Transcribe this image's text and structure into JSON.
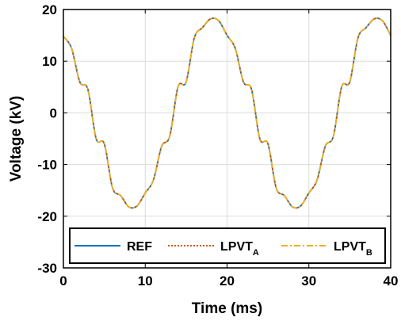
{
  "chart_data": {
    "type": "line",
    "xlabel": "Time (ms)",
    "ylabel": "Voltage (kV)",
    "xlim": [
      0,
      40
    ],
    "ylim": [
      -30,
      20
    ],
    "xticks": [
      0,
      10,
      20,
      30,
      40
    ],
    "yticks": [
      20,
      10,
      0,
      -10,
      -20,
      -30
    ],
    "grid": true,
    "legend_position": "bottom",
    "x": [
      0,
      1,
      2,
      3,
      4,
      5,
      6,
      7,
      8,
      9,
      10,
      11,
      12,
      13,
      14,
      15,
      16,
      17,
      18,
      19,
      20,
      21,
      22,
      23,
      24,
      25,
      26,
      27,
      28,
      29,
      30,
      31,
      32,
      33,
      34,
      35,
      36,
      37,
      38,
      39,
      40
    ],
    "series": [
      {
        "name": "REF",
        "sub": "",
        "color": "#0072BD",
        "dash": "",
        "values": [
          14.8,
          12.5,
          6.0,
          4.5,
          -5.0,
          -6.0,
          -14.5,
          -16.0,
          -18.2,
          -18.0,
          -15.5,
          -13.0,
          -6.5,
          -4.5,
          5.0,
          6.0,
          14.5,
          16.5,
          18.2,
          17.8,
          15.0,
          12.5,
          6.0,
          4.5,
          -5.0,
          -6.0,
          -14.5,
          -16.0,
          -18.2,
          -18.0,
          -15.5,
          -13.0,
          -6.5,
          -4.5,
          5.0,
          6.0,
          14.5,
          16.5,
          18.2,
          17.8,
          15.0
        ]
      },
      {
        "name": "LPVT",
        "sub": "A",
        "color": "#D95319",
        "dash": "2 2",
        "values": [
          14.8,
          12.5,
          6.0,
          4.5,
          -5.0,
          -6.0,
          -14.5,
          -16.0,
          -18.2,
          -18.0,
          -15.5,
          -13.0,
          -6.5,
          -4.5,
          5.0,
          6.0,
          14.5,
          16.5,
          18.2,
          17.8,
          15.0,
          12.5,
          6.0,
          4.5,
          -5.0,
          -6.0,
          -14.5,
          -16.0,
          -18.2,
          -18.0,
          -15.5,
          -13.0,
          -6.5,
          -4.5,
          5.0,
          6.0,
          14.5,
          16.5,
          18.2,
          17.8,
          15.0
        ]
      },
      {
        "name": "LPVT",
        "sub": "B",
        "color": "#EDB120",
        "dash": "8 3 2 3",
        "values": [
          14.8,
          12.5,
          6.0,
          4.5,
          -5.0,
          -6.0,
          -14.5,
          -16.0,
          -18.2,
          -18.0,
          -15.5,
          -13.0,
          -6.5,
          -4.5,
          5.0,
          6.0,
          14.5,
          16.5,
          18.2,
          17.8,
          15.0,
          12.5,
          6.0,
          4.5,
          -5.0,
          -6.0,
          -14.5,
          -16.0,
          -18.2,
          -18.0,
          -15.5,
          -13.0,
          -6.5,
          -4.5,
          5.0,
          6.0,
          14.5,
          16.5,
          18.2,
          17.8,
          15.0
        ]
      }
    ]
  }
}
